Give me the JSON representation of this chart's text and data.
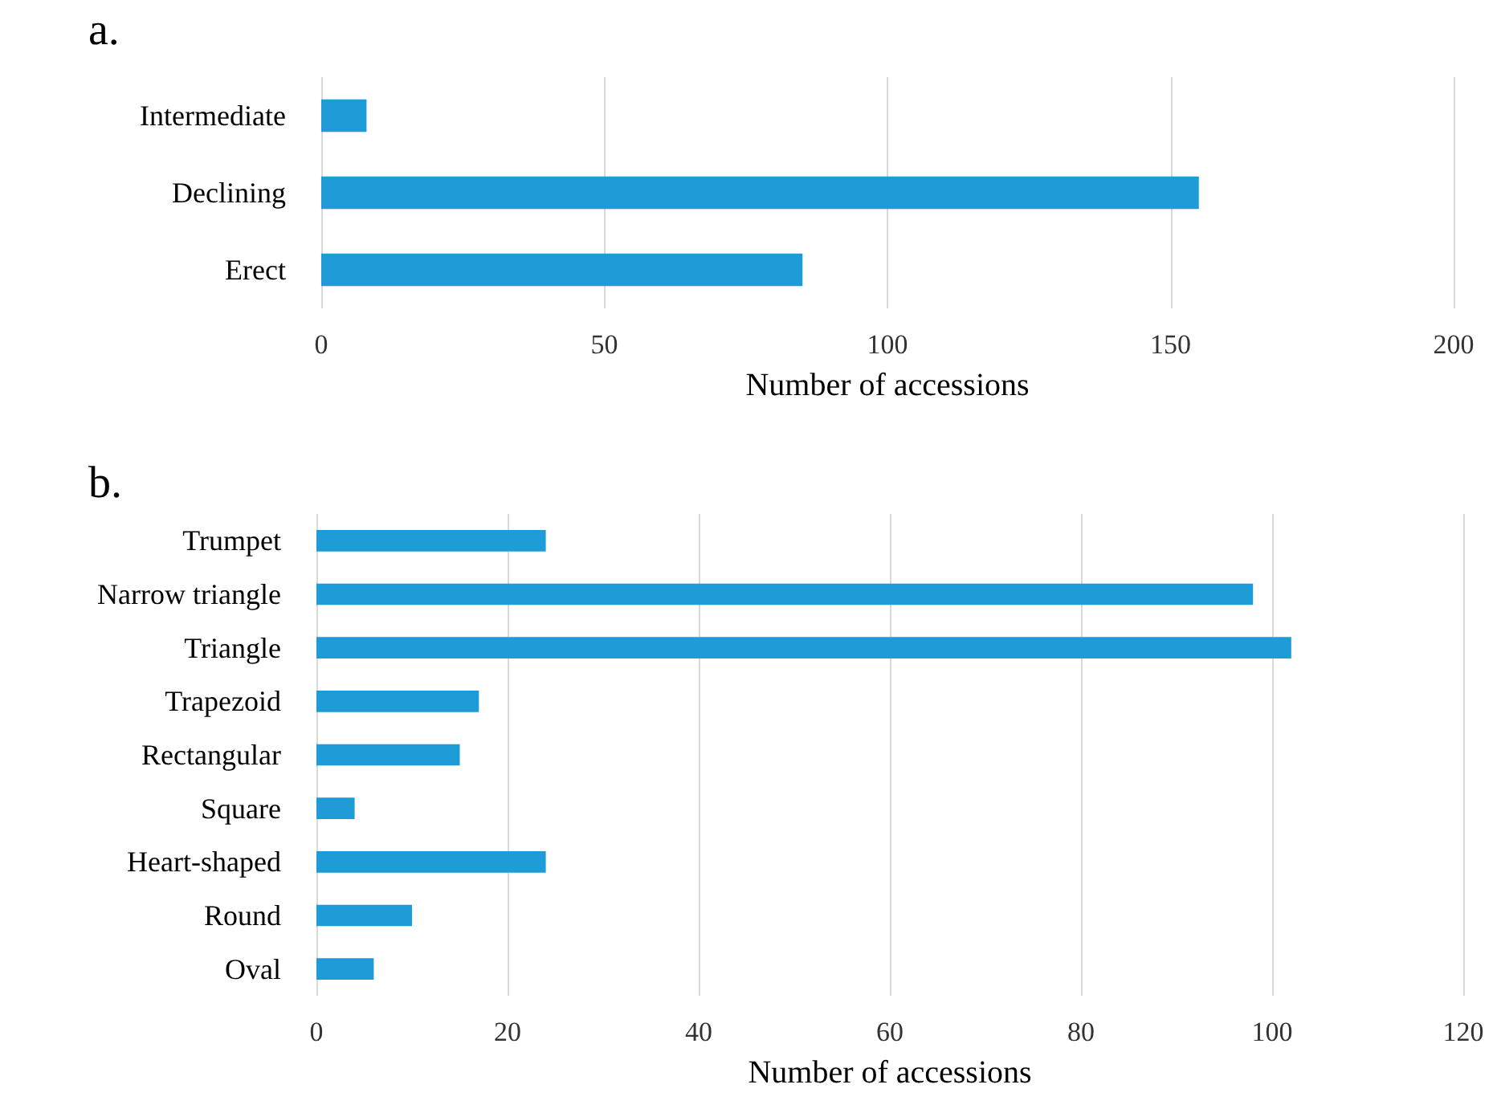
{
  "chart_data": [
    {
      "type": "bar",
      "title": "a.",
      "orientation": "horizontal",
      "categories": [
        "Intermediate",
        "Declining",
        "Erect"
      ],
      "values": [
        8,
        155,
        85
      ],
      "color": "#1e9cd7",
      "xlim": [
        0,
        200
      ],
      "xticks": [
        0,
        50,
        100,
        150,
        200
      ],
      "xlabel": "Number of accessions",
      "grid": "x"
    },
    {
      "type": "bar",
      "title": "b.",
      "orientation": "horizontal",
      "categories": [
        "Trumpet",
        "Narrow triangle",
        "Triangle",
        "Trapezoid",
        "Rectangular",
        "Square",
        "Heart-shaped",
        "Round",
        "Oval"
      ],
      "values": [
        24,
        98,
        102,
        17,
        15,
        4,
        24,
        10,
        6
      ],
      "color": "#1e9cd7",
      "xlim": [
        0,
        120
      ],
      "xticks": [
        0,
        20,
        40,
        60,
        80,
        100,
        120
      ],
      "xlabel": "Number of accessions",
      "grid": "x"
    }
  ]
}
